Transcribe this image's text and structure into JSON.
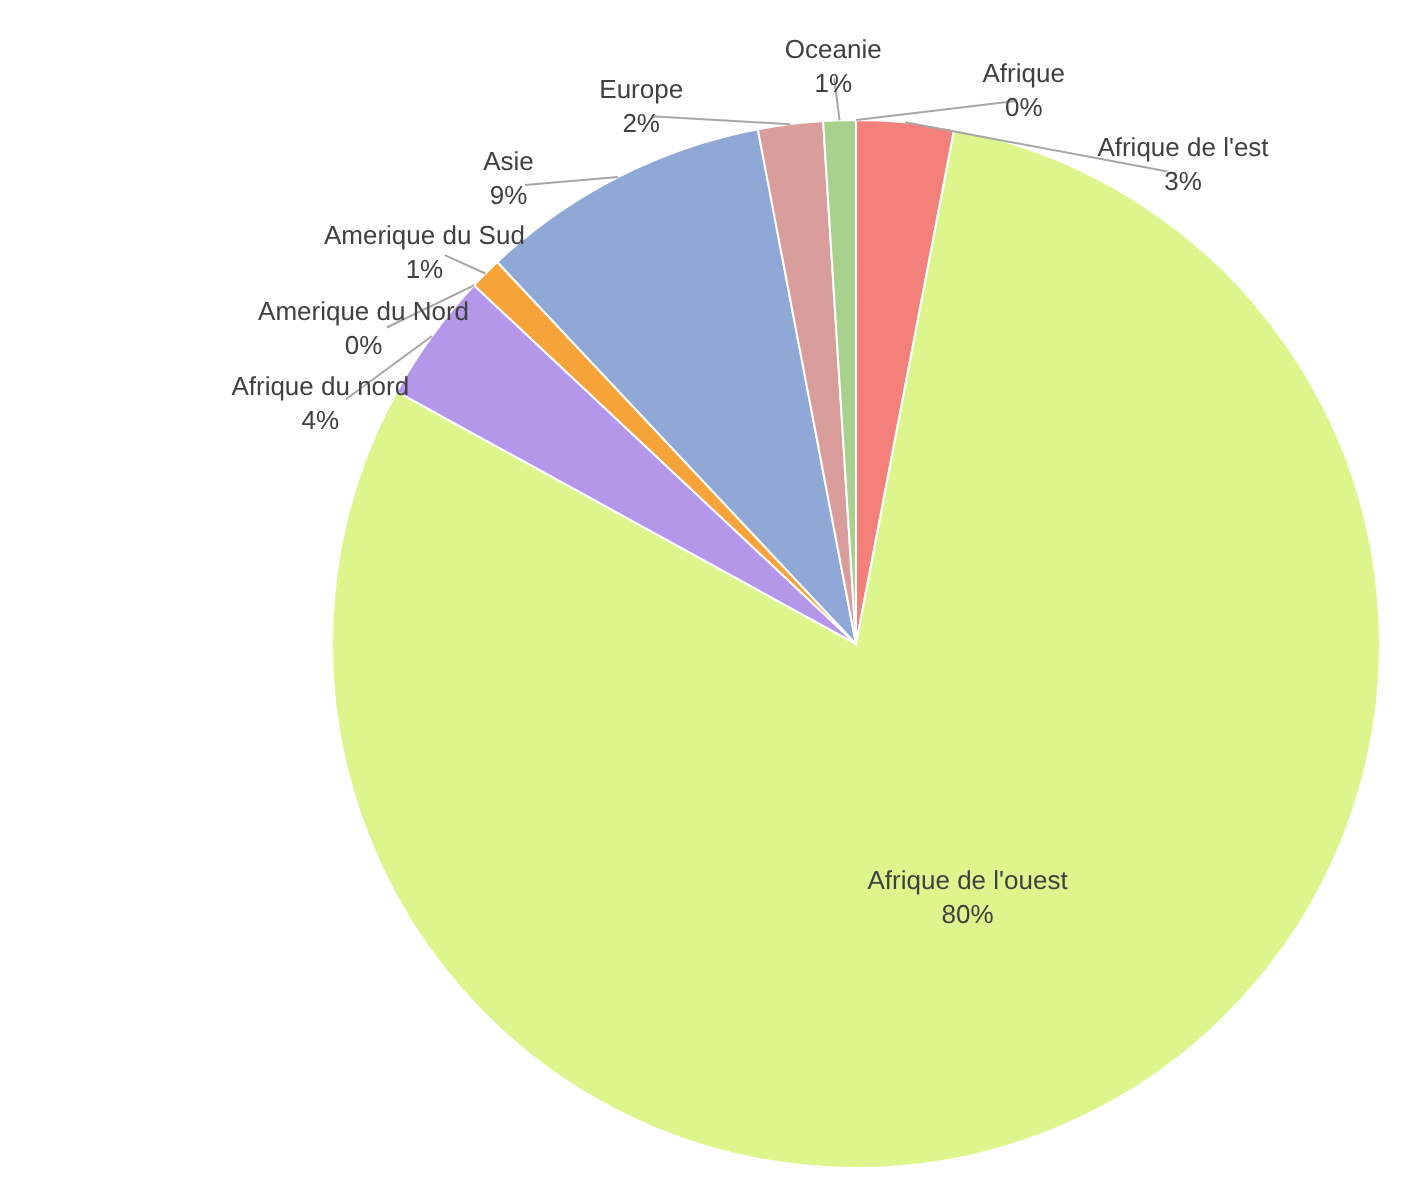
{
  "chart_data": {
    "type": "pie",
    "categories": [
      "Afrique",
      "Afrique de l'est",
      "Afrique de l'ouest",
      "Afrique du nord",
      "Amerique du Nord",
      "Amerique du Sud",
      "Asie",
      "Europe",
      "Oceanie"
    ],
    "values": [
      0,
      3,
      80,
      4,
      0,
      1,
      9,
      2,
      1
    ],
    "value_labels": [
      "0%",
      "3%",
      "80%",
      "4%",
      "0%",
      "1%",
      "9%",
      "2%",
      "1%"
    ],
    "colors": [
      "#b5d89a",
      "#f4807c",
      "#dcf58c",
      "#b497e8",
      "#7aa7d8",
      "#f6a33a",
      "#8fa8d6",
      "#d99e9c",
      "#a9d18e"
    ]
  }
}
